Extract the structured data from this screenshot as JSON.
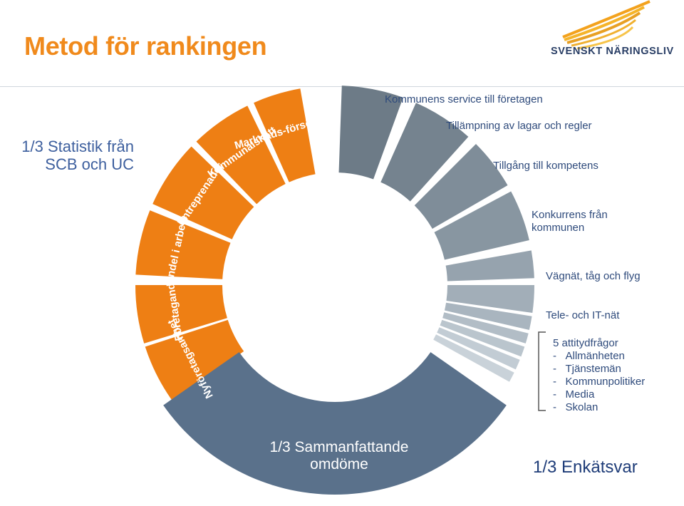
{
  "title": "Metod för rankingen",
  "logo": {
    "text": "SVENSKT NÄRINGSLIV",
    "icon": "sail-logo-icon"
  },
  "left_note": {
    "line1": "1/3 Statistik från",
    "line2": "SCB och UC"
  },
  "orange_segments": [
    "Nyföretagsamhet",
    "Företagande",
    "Andel i arbete",
    "Entreprenader",
    "Kommunalskatt",
    "Marknads-försörjning"
  ],
  "center_label": {
    "line1": "1/3 Sammanfattande",
    "line2": "omdöme"
  },
  "right_labels": {
    "service": "Kommunens service till företagen",
    "lagar": "Tillämpning av lagar och regler",
    "kompetens": "Tillgång till kompetens",
    "konkurrens_line1": "Konkurrens från",
    "konkurrens_line2": "kommunen",
    "vagnat": "Vägnät, tåg och flyg",
    "tele": "Tele- och IT-nät"
  },
  "attitude": {
    "heading": "5 attitydfrågor",
    "items": [
      "Allmänheten",
      "Tjänstemän",
      "Kommunpolitiker",
      "Media",
      "Skolan"
    ]
  },
  "bottom_right": "1/3 Enkätsvar",
  "colors": {
    "orange": "#EE7F14",
    "bottom_arc": "#5A718B",
    "title": "#F08A1C",
    "grey_segments": [
      "#6D7B87",
      "#75838F",
      "#7F8D99",
      "#8896A1",
      "#96A3AE",
      "#A2AEB8",
      "#A9B5BF",
      "#B2BDC6",
      "#BAC5CD",
      "#C2CCD4",
      "#C9D2D9"
    ]
  }
}
